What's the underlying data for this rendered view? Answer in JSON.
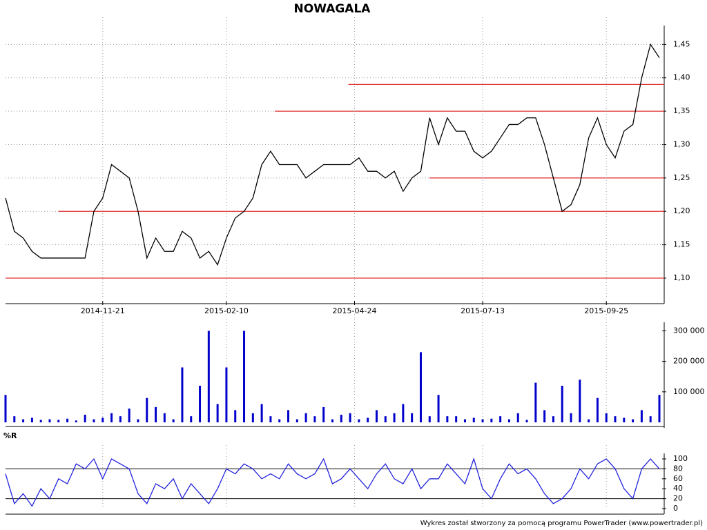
{
  "title": "NOWAGALA",
  "footer": "Wykres został stworzony za pomocą programu PowerTrader (www.powertrader.pl)",
  "chart_data": [
    {
      "type": "line",
      "color": "#000000",
      "x": [
        0,
        1,
        2,
        3,
        4,
        5,
        6,
        7,
        8,
        9,
        10,
        11,
        12,
        13,
        14,
        15,
        16,
        17,
        18,
        19,
        20,
        21,
        22,
        23,
        24,
        25,
        26,
        27,
        28,
        29,
        30,
        31,
        32,
        33,
        34,
        35,
        36,
        37,
        38,
        39,
        40,
        41,
        42,
        43,
        44,
        45,
        46,
        47,
        48,
        49,
        50,
        51,
        52,
        53,
        54,
        55,
        56,
        57,
        58,
        59,
        60,
        61,
        62,
        63,
        64,
        65,
        66,
        67,
        68,
        69,
        70,
        71,
        72,
        73,
        74
      ],
      "values": [
        1.22,
        1.17,
        1.16,
        1.14,
        1.13,
        1.13,
        1.13,
        1.13,
        1.13,
        1.13,
        1.2,
        1.22,
        1.27,
        1.26,
        1.25,
        1.2,
        1.13,
        1.16,
        1.14,
        1.14,
        1.17,
        1.16,
        1.13,
        1.14,
        1.12,
        1.16,
        1.19,
        1.2,
        1.22,
        1.27,
        1.29,
        1.27,
        1.27,
        1.27,
        1.25,
        1.26,
        1.27,
        1.27,
        1.27,
        1.27,
        1.28,
        1.26,
        1.26,
        1.25,
        1.26,
        1.23,
        1.25,
        1.26,
        1.34,
        1.3,
        1.34,
        1.32,
        1.32,
        1.29,
        1.28,
        1.29,
        1.31,
        1.33,
        1.33,
        1.34,
        1.34,
        1.3,
        1.25,
        1.2,
        1.21,
        1.24,
        1.31,
        1.34,
        1.3,
        1.28,
        1.32,
        1.33,
        1.4,
        1.45,
        1.43
      ],
      "xlim": [
        0,
        74
      ],
      "xticks": [
        {
          "value": 11,
          "label": "2014-11-21"
        },
        {
          "value": 25,
          "label": "2015-02-10"
        },
        {
          "value": 39.5,
          "label": "2015-04-24"
        },
        {
          "value": 54,
          "label": "2015-07-13"
        },
        {
          "value": 68,
          "label": "2015-09-25"
        }
      ],
      "ylim": [
        1.07,
        1.47
      ],
      "yticks": [
        {
          "value": 1.1,
          "label": "1,10"
        },
        {
          "value": 1.15,
          "label": "1,15"
        },
        {
          "value": 1.2,
          "label": "1,20"
        },
        {
          "value": 1.25,
          "label": "1,25"
        },
        {
          "value": 1.3,
          "label": "1,30"
        },
        {
          "value": 1.35,
          "label": "1,35"
        },
        {
          "value": 1.4,
          "label": "1,40"
        },
        {
          "value": 1.45,
          "label": "1,45"
        }
      ],
      "levels": [
        {
          "value": 1.1,
          "from": 0
        },
        {
          "value": 1.2,
          "from": 6
        },
        {
          "value": 1.25,
          "from": 48
        },
        {
          "value": 1.35,
          "from": 30.5
        },
        {
          "value": 1.39,
          "from": 38.8
        }
      ],
      "level_color": "#e03030",
      "grid": true
    },
    {
      "type": "bar",
      "color": "#0000cc",
      "values": [
        90000,
        20000,
        10000,
        15000,
        8000,
        10000,
        8000,
        12000,
        6000,
        25000,
        10000,
        15000,
        30000,
        20000,
        45000,
        10000,
        80000,
        50000,
        30000,
        10000,
        180000,
        20000,
        120000,
        300000,
        60000,
        180000,
        40000,
        300000,
        30000,
        60000,
        20000,
        10000,
        40000,
        10000,
        30000,
        20000,
        50000,
        10000,
        25000,
        30000,
        10000,
        15000,
        40000,
        20000,
        30000,
        60000,
        30000,
        230000,
        20000,
        90000,
        20000,
        20000,
        10000,
        15000,
        10000,
        12000,
        20000,
        10000,
        30000,
        8000,
        130000,
        40000,
        20000,
        120000,
        30000,
        140000,
        10000,
        80000,
        30000,
        20000,
        15000,
        10000,
        40000,
        20000,
        90000
      ],
      "ylim": [
        0,
        310000
      ],
      "yticks": [
        {
          "value": 100000,
          "label": "100 000"
        },
        {
          "value": 200000,
          "label": "200 000"
        },
        {
          "value": 300000,
          "label": "300 000"
        }
      ]
    },
    {
      "type": "line",
      "title": "%R",
      "color": "#2222dd",
      "values": [
        70,
        10,
        30,
        5,
        40,
        20,
        60,
        50,
        90,
        80,
        100,
        60,
        100,
        90,
        80,
        30,
        10,
        50,
        40,
        60,
        20,
        50,
        30,
        10,
        40,
        80,
        70,
        90,
        80,
        60,
        70,
        60,
        90,
        70,
        60,
        70,
        100,
        50,
        60,
        80,
        60,
        40,
        70,
        90,
        60,
        50,
        80,
        40,
        60,
        60,
        90,
        70,
        50,
        100,
        40,
        20,
        60,
        90,
        70,
        80,
        60,
        30,
        10,
        20,
        40,
        80,
        60,
        90,
        100,
        80,
        40,
        20,
        80,
        100,
        80
      ],
      "ylim": [
        0,
        100
      ],
      "yticks": [
        0,
        20,
        40,
        60,
        80,
        100
      ],
      "hlines": [
        20,
        80
      ]
    }
  ]
}
